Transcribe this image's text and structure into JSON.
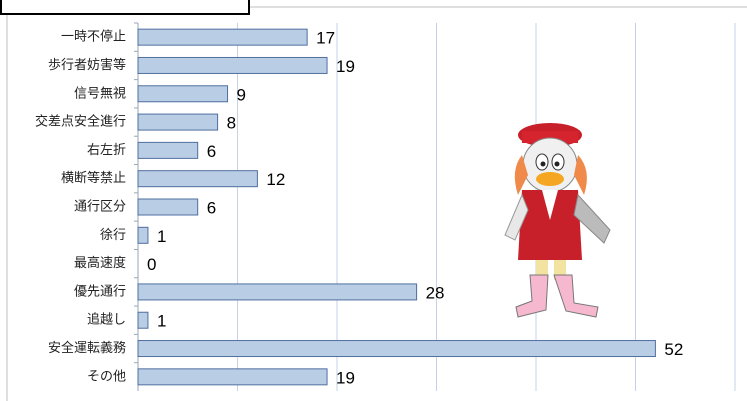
{
  "chart_data": {
    "type": "bar",
    "orientation": "horizontal",
    "categories": [
      "一時不停止",
      "歩行者妨害等",
      "信号無視",
      "交差点安全進行",
      "右左折",
      "横断等禁止",
      "通行区分",
      "徐行",
      "最高速度",
      "優先通行",
      "追越し",
      "安全運転義務",
      "その他"
    ],
    "values": [
      17,
      19,
      9,
      8,
      6,
      12,
      6,
      1,
      0,
      28,
      1,
      52,
      19
    ],
    "color": "#b9cde5",
    "xlim": [
      0,
      60
    ],
    "xticks": [
      0,
      10,
      20,
      30,
      40,
      50,
      60
    ],
    "grid": true
  }
}
